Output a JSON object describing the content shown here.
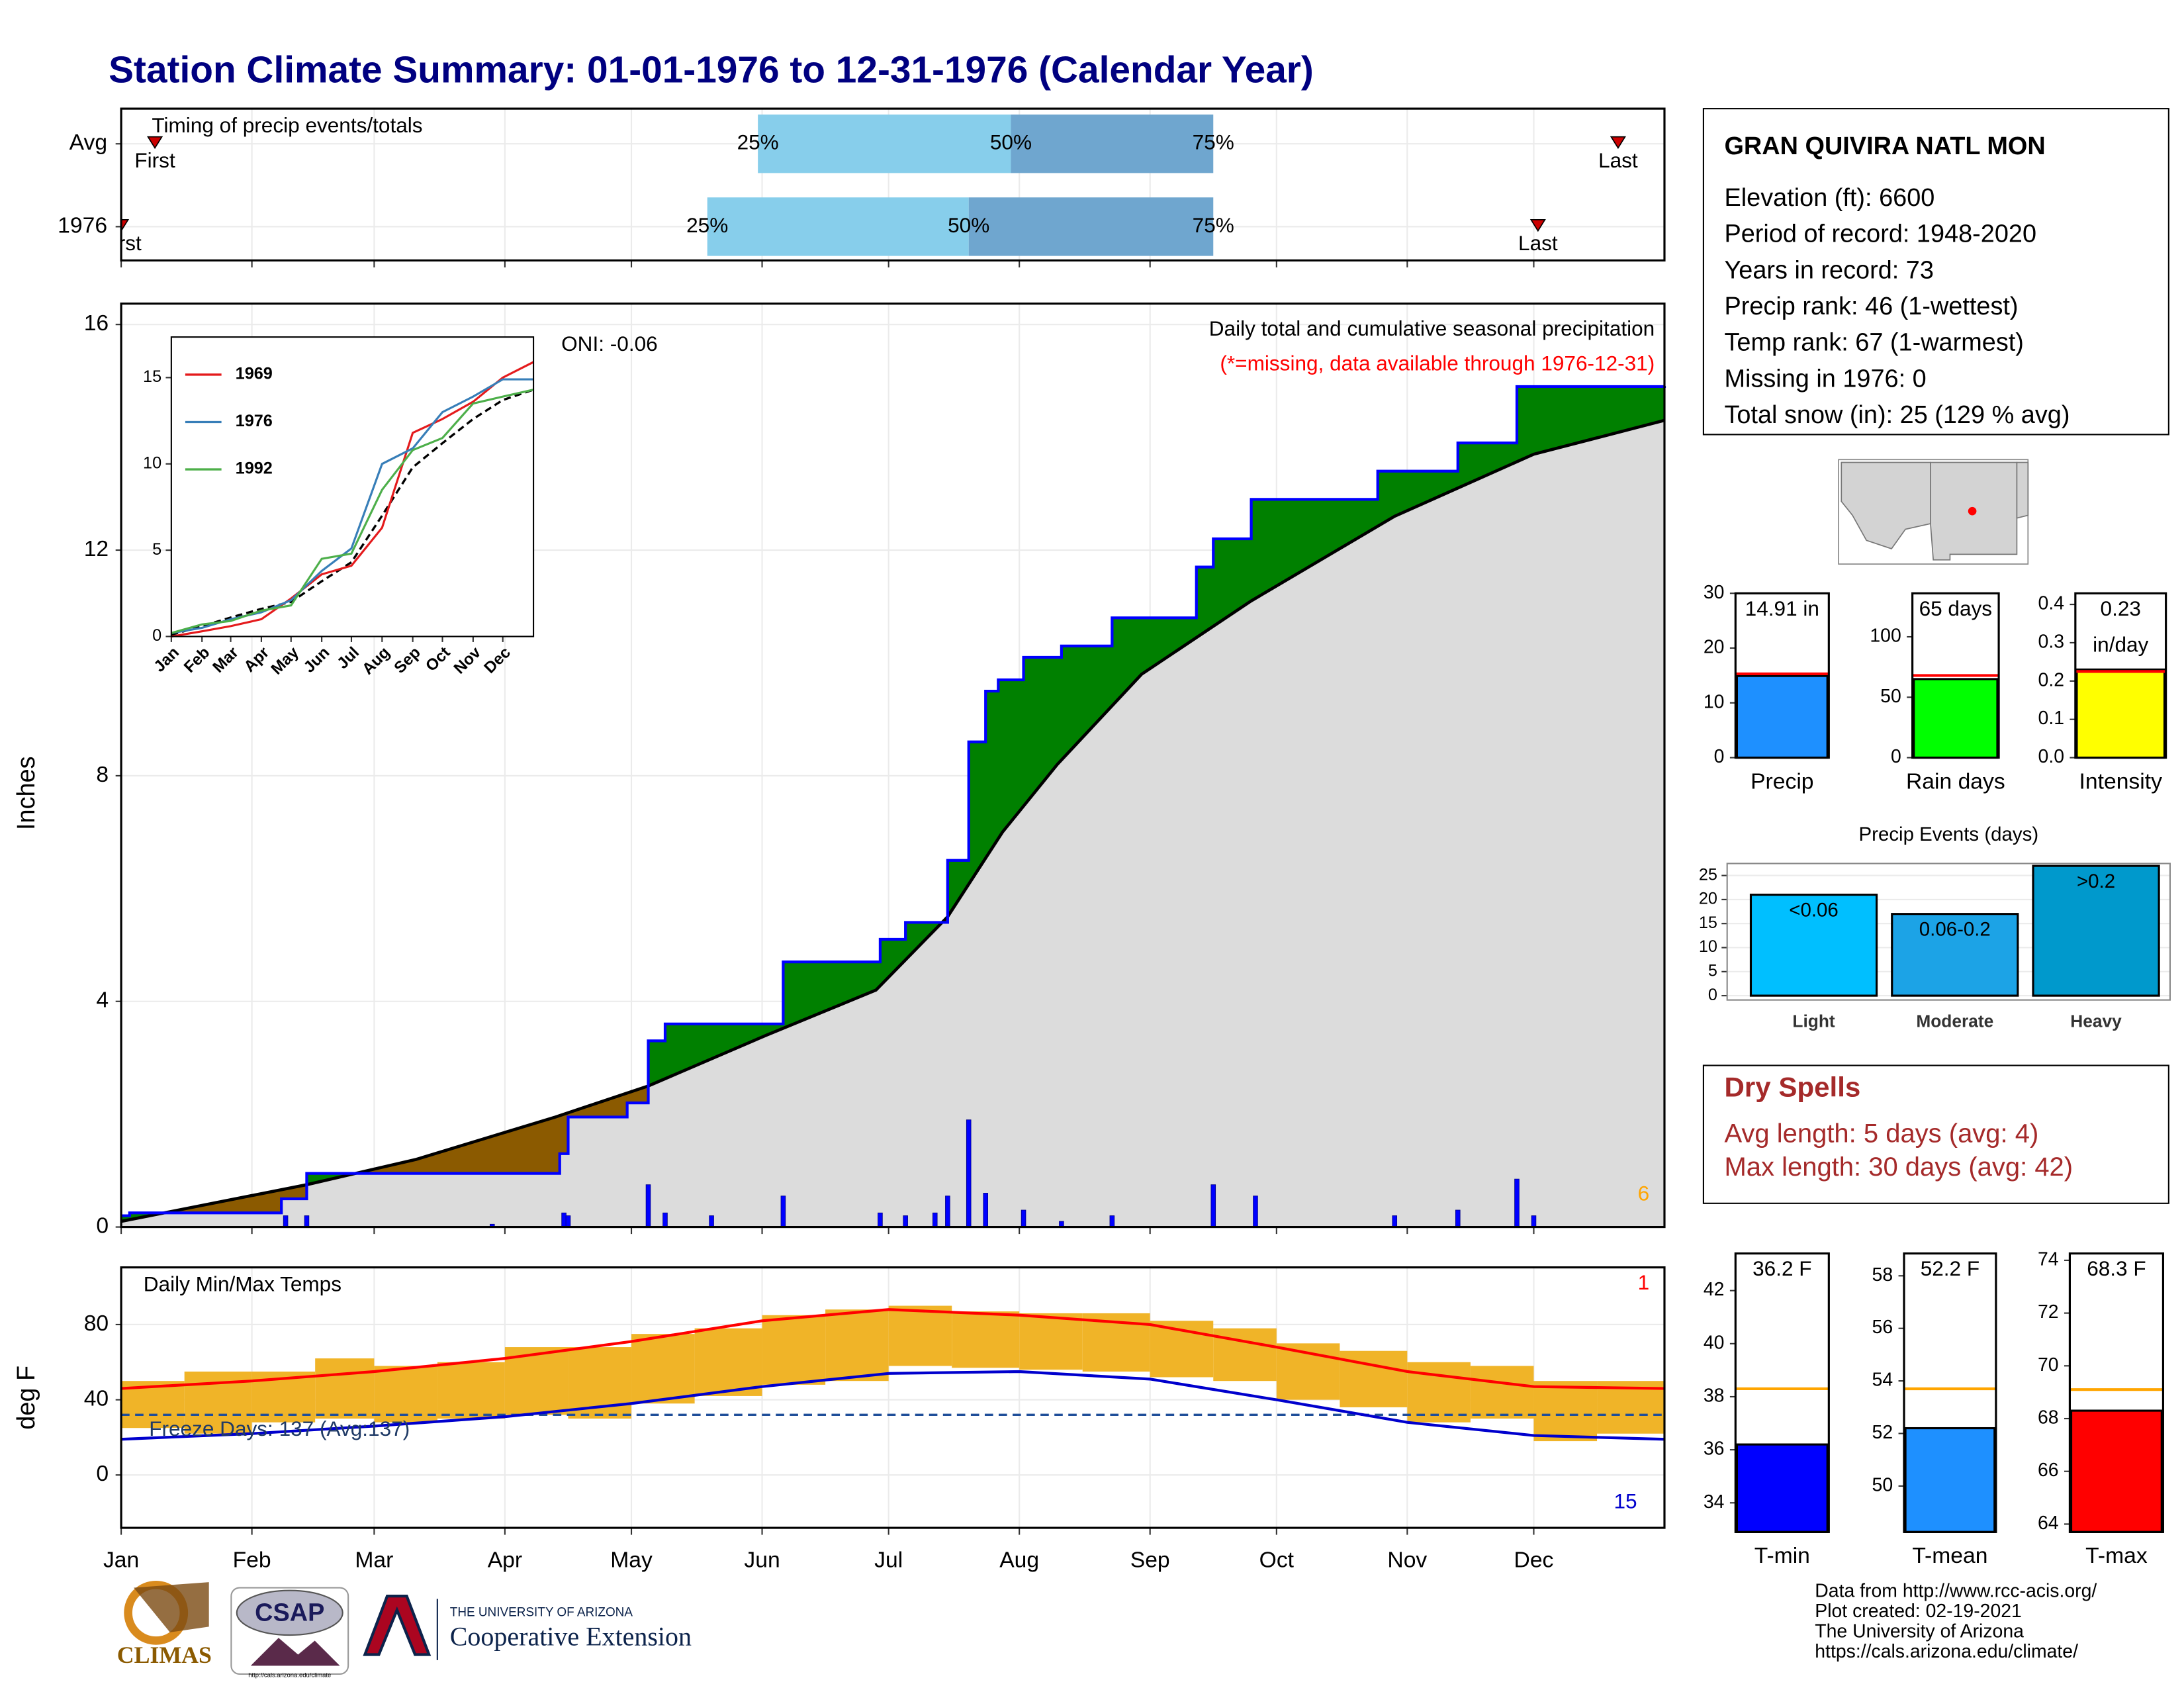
{
  "title": "Station Climate Summary: 01-01-1976 to 12-31-1976 (Calendar Year)",
  "chart_data": [
    {
      "type": "timing",
      "title": "Timing of precip events/totals",
      "categories": [
        "Avg",
        "1976"
      ],
      "xlim": [
        0,
        366
      ],
      "quartiles": [
        [
          151,
          211,
          259
        ],
        [
          139,
          201,
          259
        ]
      ],
      "quartile_labels": [
        "25%",
        "50%",
        "75%"
      ],
      "first": [
        8,
        0
      ],
      "last": [
        355,
        336
      ],
      "first_label": "First",
      "last_label": "Last",
      "colors": [
        "#87ceeb",
        "#6fa6cf"
      ]
    },
    {
      "type": "cumulative_precip",
      "title": "Daily total and cumulative seasonal precipitation",
      "subtitle": "(*=missing, data available through 1976-12-31)",
      "ylabel": "Inches",
      "annotation": "ONI: -0.06",
      "count_label": "6",
      "xlim": [
        0,
        366
      ],
      "ylim": [
        0,
        16.37
      ],
      "yticks": [
        0,
        4,
        8,
        12,
        16
      ],
      "xticks": [
        0,
        31,
        60,
        91,
        121,
        152,
        182,
        213,
        244,
        274,
        305,
        335
      ],
      "cumulative": {
        "color": "#0000ff",
        "x": [
          0,
          2,
          38,
          44,
          104,
          106,
          120,
          125,
          129,
          157,
          180,
          186,
          196,
          201,
          205,
          208,
          214,
          223,
          235,
          255,
          259,
          268,
          298,
          317,
          331,
          366
        ],
        "values": [
          0.2,
          0.25,
          0.5,
          0.95,
          1.3,
          1.95,
          2.2,
          3.3,
          3.6,
          4.7,
          5.1,
          5.4,
          6.5,
          8.6,
          9.5,
          9.7,
          10.1,
          10.3,
          10.8,
          11.7,
          12.2,
          12.9,
          13.4,
          13.9,
          14.9,
          14.91
        ]
      },
      "normal": {
        "x": [
          0,
          44,
          70,
          103,
          125,
          153,
          179,
          196,
          209,
          222,
          242,
          268,
          302,
          335,
          366
        ],
        "values": [
          0.1,
          0.75,
          1.2,
          1.95,
          2.5,
          3.4,
          4.2,
          5.5,
          7.0,
          8.2,
          9.8,
          11.1,
          12.6,
          13.7,
          14.3
        ]
      },
      "daily": {
        "color": "#0000ff",
        "x": [
          39,
          44,
          88,
          105,
          106,
          125,
          129,
          140,
          157,
          180,
          186,
          193,
          196,
          201,
          205,
          214,
          223,
          235,
          259,
          269,
          302,
          317,
          331,
          335
        ],
        "values": [
          0.2,
          0.2,
          0.05,
          0.25,
          0.2,
          0.75,
          0.25,
          0.2,
          0.55,
          0.25,
          0.2,
          0.25,
          0.55,
          1.9,
          0.6,
          0.3,
          0.1,
          0.2,
          0.75,
          0.55,
          0.2,
          0.3,
          0.85,
          0.2
        ]
      }
    },
    {
      "type": "line",
      "x": [
        0,
        31,
        60,
        91,
        121,
        152,
        182,
        213,
        244,
        274,
        305,
        335,
        366
      ],
      "xticks": [
        {
          "value": 0,
          "label": "Jan"
        },
        {
          "value": 31,
          "label": "Feb"
        },
        {
          "value": 60,
          "label": "Mar"
        },
        {
          "value": 91,
          "label": "Apr"
        },
        {
          "value": 121,
          "label": "May"
        },
        {
          "value": 152,
          "label": "Jun"
        },
        {
          "value": 182,
          "label": "Jul"
        },
        {
          "value": 213,
          "label": "Aug"
        },
        {
          "value": 244,
          "label": "Sep"
        },
        {
          "value": 274,
          "label": "Oct"
        },
        {
          "value": 305,
          "label": "Nov"
        },
        {
          "value": 335,
          "label": "Dec"
        }
      ],
      "xlim": [
        0,
        366
      ],
      "ylim": [
        0,
        17.35
      ],
      "yticks": [
        0,
        5,
        10,
        15
      ],
      "series": [
        {
          "name": "1969",
          "color": "#e41a1c",
          "values": [
            0,
            0.3,
            0.6,
            1.0,
            2.2,
            3.6,
            4.1,
            6.3,
            11.8,
            12.6,
            13.6,
            15.0,
            15.9
          ]
        },
        {
          "name": "1976",
          "color": "#377eb8",
          "values": [
            0.2,
            0.5,
            1.0,
            1.4,
            2.1,
            3.8,
            5.1,
            10.0,
            10.9,
            13.0,
            13.9,
            14.9,
            14.9
          ]
        },
        {
          "name": "1992",
          "color": "#4daf4a",
          "values": [
            0.2,
            0.7,
            0.9,
            1.5,
            1.8,
            4.5,
            4.8,
            8.5,
            10.8,
            11.5,
            13.5,
            13.9,
            14.3
          ]
        }
      ],
      "normal": [
        0.1,
        0.6,
        1.1,
        1.6,
        2.0,
        3.2,
        4.3,
        7.0,
        9.8,
        11.2,
        12.6,
        13.7,
        14.3
      ]
    },
    {
      "type": "temperature",
      "title": "Daily Min/Max Temps",
      "ylabel": "deg F",
      "annotation": "Freeze Days: 137 (Avg:137)",
      "freeze_line": 32,
      "record_high_count": 1,
      "record_high_color": "#ff0000",
      "record_low_count": 15,
      "record_low_color": "#0000cd",
      "xlim": [
        0,
        366
      ],
      "ylim": [
        -28.1,
        110.4
      ],
      "yticks": [
        0,
        40,
        80
      ],
      "xticks": [
        {
          "value": 0,
          "label": "Jan"
        },
        {
          "value": 31,
          "label": "Feb"
        },
        {
          "value": 60,
          "label": "Mar"
        },
        {
          "value": 91,
          "label": "Apr"
        },
        {
          "value": 121,
          "label": "May"
        },
        {
          "value": 152,
          "label": "Jun"
        },
        {
          "value": 182,
          "label": "Jul"
        },
        {
          "value": 213,
          "label": "Aug"
        },
        {
          "value": 244,
          "label": "Sep"
        },
        {
          "value": 274,
          "label": "Oct"
        },
        {
          "value": 305,
          "label": "Nov"
        },
        {
          "value": 335,
          "label": "Dec"
        }
      ],
      "daily": {
        "color": "#f0b428",
        "x": [
          0,
          15,
          31,
          46,
          60,
          75,
          91,
          106,
          121,
          136,
          152,
          167,
          182,
          197,
          213,
          228,
          244,
          259,
          274,
          289,
          305,
          320,
          335,
          350
        ],
        "tmin": [
          25,
          22,
          28,
          30,
          28,
          30,
          32,
          30,
          38,
          42,
          48,
          50,
          58,
          57,
          56,
          55,
          52,
          50,
          40,
          36,
          28,
          30,
          18,
          22
        ],
        "tmax": [
          50,
          55,
          55,
          62,
          58,
          60,
          68,
          68,
          75,
          78,
          85,
          88,
          90,
          87,
          86,
          86,
          82,
          78,
          70,
          66,
          60,
          58,
          50,
          50
        ]
      },
      "normal_max": {
        "color": "#ff0000",
        "x": [
          0,
          31,
          60,
          91,
          121,
          152,
          182,
          213,
          244,
          274,
          305,
          335,
          366
        ],
        "values": [
          46,
          50,
          55,
          62,
          71,
          82,
          88,
          85,
          80,
          68,
          55,
          47,
          46
        ]
      },
      "normal_min": {
        "color": "#0000cd",
        "x": [
          0,
          31,
          60,
          91,
          121,
          152,
          182,
          213,
          244,
          274,
          305,
          335,
          366
        ],
        "values": [
          19,
          22,
          26,
          31,
          38,
          47,
          54,
          55,
          51,
          40,
          28,
          21,
          19
        ]
      }
    },
    {
      "type": "summary_bar",
      "label": "Precip",
      "value": 14.91,
      "value_label_lines": [
        "14.91 in"
      ],
      "average": 15.3,
      "average_color": "#ff0000",
      "color": "#1e90ff",
      "ylim": [
        0,
        30
      ],
      "yticks": [
        0,
        10,
        20,
        30
      ]
    },
    {
      "type": "summary_bar",
      "label": "Rain days",
      "value": 65,
      "value_label_lines": [
        "65 days"
      ],
      "average": 68,
      "average_color": "#ff0000",
      "color": "#00ff00",
      "ylim": [
        0,
        136
      ],
      "yticks": [
        0,
        50,
        100
      ]
    },
    {
      "type": "summary_bar",
      "label": "Intensity",
      "value": 0.23,
      "value_label_lines": [
        "0.23",
        "in/day"
      ],
      "average": 0.225,
      "average_color": "#ff0000",
      "color": "#ffff00",
      "ylim": [
        0,
        0.429
      ],
      "yticks": [
        {
          "value": 0,
          "label": "0.0"
        },
        0.1,
        0.2,
        0.3,
        0.4
      ]
    },
    {
      "type": "events_bar",
      "title": "Precip Events (days)",
      "categories": [
        "Light",
        "Moderate",
        "Heavy"
      ],
      "values": [
        21,
        17,
        27
      ],
      "value_labels": [
        "<0.06",
        "0.06-0.2",
        ">0.2"
      ],
      "colors": [
        "#00bfff",
        "#1ca3e6",
        "#0099cc"
      ],
      "ylim": [
        -0.9,
        27.5
      ],
      "yticks": [
        0,
        5,
        10,
        15,
        20,
        25
      ]
    },
    {
      "type": "summary_bar",
      "label": "T-min",
      "value": 36.2,
      "value_label_lines": [
        "36.2 F"
      ],
      "average": 38.3,
      "average_color": "#ffa500",
      "color": "#0000ff",
      "ylim": [
        32.9,
        43.4
      ],
      "yticks": [
        34,
        36,
        38,
        40,
        42
      ]
    },
    {
      "type": "summary_bar",
      "label": "T-mean",
      "value": 52.2,
      "value_label_lines": [
        "52.2 F"
      ],
      "average": 53.7,
      "average_color": "#ffa500",
      "color": "#1e90ff",
      "ylim": [
        48.25,
        58.85
      ],
      "yticks": [
        50,
        52,
        54,
        56,
        58
      ]
    },
    {
      "type": "summary_bar",
      "label": "T-max",
      "value": 68.3,
      "value_label_lines": [
        "68.3 F"
      ],
      "average": 69.1,
      "average_color": "#ffa500",
      "color": "#ff0000",
      "ylim": [
        63.7,
        74.26
      ],
      "yticks": [
        64,
        66,
        68,
        70,
        72,
        74
      ]
    }
  ],
  "station": {
    "name": "GRAN QUIVIRA NATL MON",
    "lines": [
      "Elevation (ft): 6600",
      "Period of record: 1948-2020",
      "Years in record: 73",
      "Precip rank: 46 (1-wettest)",
      "Temp rank: 67 (1-warmest)",
      "Missing in 1976: 0",
      "Total snow (in): 25 (129 % avg)"
    ]
  },
  "dry_spells": {
    "title": "Dry Spells",
    "lines": [
      "Avg length: 5 days (avg: 4)",
      "Max length: 30 days (avg: 42)"
    ]
  },
  "credits": [
    "Data from http://www.rcc-acis.org/",
    "Plot created: 02-19-2021",
    "The University of Arizona",
    "https://cals.arizona.edu/climate/"
  ],
  "logos": {
    "climas": "CLIMAS",
    "csap": "CSAP",
    "csap_url": "http://cals.arizona.edu/climate",
    "ua_small": "THE UNIVERSITY OF ARIZONA",
    "ua_large": "Cooperative Extension"
  }
}
